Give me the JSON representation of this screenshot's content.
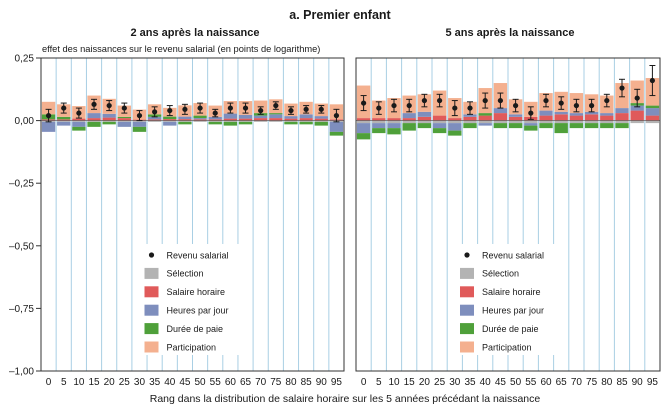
{
  "figure": {
    "title": "a. Premier enfant",
    "y_axis_note": "effet des naissances sur le revenu salarial (en points de logarithme)",
    "xlabel": "Rang dans la distribution de salaire horaire sur les 5 années précédant la naissance"
  },
  "chart_data": [
    {
      "type": "bar",
      "stacked": true,
      "title": "2 ans après la naissance",
      "ylim": [
        -1.0,
        0.25
      ],
      "yticks": [
        "0,25",
        "0,00",
        "–0,25",
        "–0,50",
        "–0,75",
        "–1,00"
      ],
      "ytick_values": [
        0.25,
        0.0,
        -0.25,
        -0.5,
        -0.75,
        -1.0
      ],
      "categories": [
        "0",
        "5",
        "10",
        "15",
        "20",
        "25",
        "30",
        "35",
        "40",
        "45",
        "50",
        "55",
        "60",
        "65",
        "70",
        "75",
        "80",
        "85",
        "90",
        "95"
      ],
      "grid": "vertical",
      "legend_placement": "bottom-center",
      "series": [
        {
          "name": "Sélection",
          "color": "#b3b3b3",
          "values": [
            -0.005,
            -0.005,
            -0.005,
            -0.005,
            -0.005,
            -0.005,
            -0.005,
            -0.005,
            -0.005,
            -0.005,
            -0.005,
            -0.005,
            -0.005,
            -0.005,
            -0.005,
            -0.005,
            -0.005,
            -0.005,
            -0.005,
            -0.005
          ]
        },
        {
          "name": "Salaire horaire",
          "color": "#e05a5a",
          "values": [
            0.005,
            0.005,
            0.008,
            0.01,
            0.012,
            0.01,
            0.004,
            0.005,
            0.006,
            0.006,
            0.005,
            0.005,
            0.008,
            0.008,
            0.01,
            0.01,
            0.008,
            0.01,
            0.008,
            0.005
          ]
        },
        {
          "name": "Heures par jour",
          "color": "#7e8ebd",
          "values": [
            -0.04,
            -0.015,
            -0.02,
            0.02,
            0.015,
            -0.02,
            -0.02,
            0.01,
            -0.015,
            0.01,
            0.005,
            0.01,
            0.02,
            0.015,
            0.01,
            0.015,
            0.01,
            0.015,
            0.01,
            -0.04
          ]
        },
        {
          "name": "Durée de paie",
          "color": "#4fa03a",
          "values": [
            0.02,
            0.01,
            -0.015,
            -0.02,
            -0.01,
            0.005,
            -0.02,
            0.01,
            0.01,
            -0.01,
            0.01,
            -0.01,
            -0.015,
            -0.01,
            0.01,
            0.005,
            -0.01,
            -0.01,
            -0.015,
            -0.015
          ]
        },
        {
          "name": "Participation",
          "color": "#f4b08f",
          "values": [
            0.05,
            0.05,
            0.05,
            0.07,
            0.06,
            0.045,
            0.04,
            0.04,
            0.035,
            0.045,
            0.05,
            0.045,
            0.05,
            0.055,
            0.05,
            0.055,
            0.05,
            0.05,
            0.05,
            0.06
          ]
        }
      ],
      "points": {
        "name": "Revenu salarial",
        "values": [
          0.02,
          0.05,
          0.03,
          0.065,
          0.06,
          0.05,
          0.02,
          0.035,
          0.04,
          0.045,
          0.05,
          0.03,
          0.05,
          0.05,
          0.04,
          0.06,
          0.04,
          0.045,
          0.045,
          0.02
        ],
        "err": [
          0.025,
          0.02,
          0.02,
          0.02,
          0.02,
          0.02,
          0.02,
          0.02,
          0.02,
          0.02,
          0.02,
          0.015,
          0.02,
          0.02,
          0.015,
          0.015,
          0.015,
          0.015,
          0.015,
          0.025
        ]
      }
    },
    {
      "type": "bar",
      "stacked": true,
      "title": "5 ans après la naissance",
      "ylim": [
        -1.0,
        0.25
      ],
      "categories": [
        "0",
        "5",
        "10",
        "15",
        "20",
        "25",
        "30",
        "35",
        "40",
        "45",
        "50",
        "55",
        "60",
        "65",
        "70",
        "75",
        "80",
        "85",
        "90",
        "95"
      ],
      "grid": "vertical",
      "legend_placement": "bottom-center",
      "series": [
        {
          "name": "Sélection",
          "color": "#b3b3b3",
          "values": [
            -0.01,
            -0.01,
            -0.01,
            -0.01,
            -0.01,
            -0.01,
            -0.01,
            -0.01,
            -0.01,
            -0.01,
            -0.01,
            -0.01,
            -0.01,
            -0.01,
            -0.01,
            -0.01,
            -0.01,
            -0.01,
            -0.01,
            -0.01
          ]
        },
        {
          "name": "Salaire horaire",
          "color": "#e05a5a",
          "values": [
            0.01,
            0.01,
            0.01,
            0.01,
            0.015,
            0.02,
            0.01,
            0.015,
            0.02,
            0.03,
            0.015,
            0.015,
            0.02,
            0.025,
            0.02,
            0.025,
            0.02,
            0.03,
            0.04,
            0.02
          ]
        },
        {
          "name": "Heures par jour",
          "color": "#7e8ebd",
          "values": [
            -0.04,
            -0.02,
            -0.02,
            0.02,
            0.02,
            -0.02,
            -0.03,
            0.01,
            -0.01,
            0.02,
            0.01,
            -0.01,
            0.02,
            0.01,
            0.01,
            0.01,
            0.01,
            0.02,
            0.02,
            0.03
          ]
        },
        {
          "name": "Durée de paie",
          "color": "#4fa03a",
          "values": [
            -0.025,
            -0.02,
            -0.025,
            -0.03,
            -0.02,
            -0.02,
            -0.02,
            -0.02,
            0.01,
            -0.02,
            -0.02,
            -0.02,
            -0.02,
            -0.04,
            -0.02,
            -0.02,
            -0.02,
            -0.02,
            0.01,
            0.01
          ]
        },
        {
          "name": "Participation",
          "color": "#f4b08f",
          "values": [
            0.13,
            0.07,
            0.08,
            0.07,
            0.07,
            0.1,
            0.08,
            0.05,
            0.1,
            0.1,
            0.06,
            0.06,
            0.07,
            0.08,
            0.08,
            0.07,
            0.07,
            0.1,
            0.09,
            0.11
          ]
        }
      ],
      "points": {
        "name": "Revenu salarial",
        "values": [
          0.07,
          0.05,
          0.06,
          0.06,
          0.08,
          0.08,
          0.05,
          0.05,
          0.08,
          0.08,
          0.06,
          0.03,
          0.08,
          0.07,
          0.06,
          0.06,
          0.08,
          0.13,
          0.09,
          0.16
        ],
        "err": [
          0.03,
          0.025,
          0.025,
          0.025,
          0.025,
          0.025,
          0.03,
          0.025,
          0.03,
          0.03,
          0.025,
          0.025,
          0.025,
          0.025,
          0.025,
          0.025,
          0.025,
          0.035,
          0.035,
          0.06
        ]
      }
    }
  ],
  "legend": [
    {
      "label": "Revenu salarial",
      "kind": "dot",
      "color": "#1a1a1a"
    },
    {
      "label": "Sélection",
      "kind": "box",
      "color": "#b3b3b3"
    },
    {
      "label": "Salaire horaire",
      "kind": "box",
      "color": "#e05a5a"
    },
    {
      "label": "Heures par jour",
      "kind": "box",
      "color": "#7e8ebd"
    },
    {
      "label": "Durée de paie",
      "kind": "box",
      "color": "#4fa03a"
    },
    {
      "label": "Participation",
      "kind": "box",
      "color": "#f4b08f"
    }
  ]
}
